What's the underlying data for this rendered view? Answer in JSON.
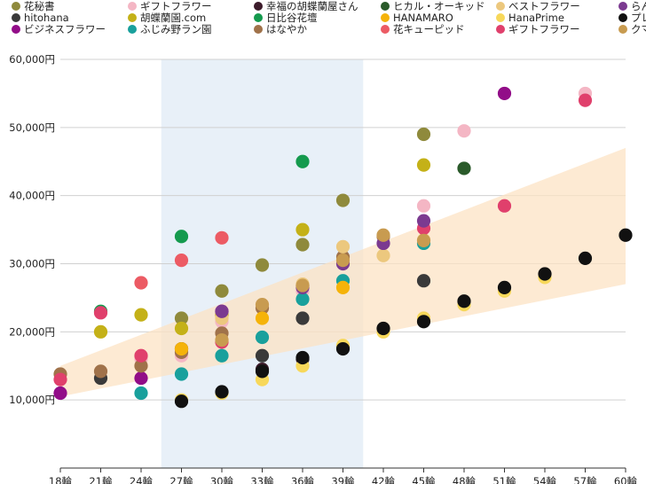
{
  "chart_data": {
    "type": "scatter",
    "title": "",
    "xlabel": "",
    "ylabel": "",
    "ylim": [
      0,
      60000
    ],
    "y_ticks": [
      10000,
      20000,
      30000,
      40000,
      50000,
      60000
    ],
    "y_tick_labels": [
      "10,000円",
      "20,000円",
      "30,000円",
      "40,000円",
      "50,000円",
      "60,000円"
    ],
    "categories": [
      "18輪",
      "21輪",
      "24輪",
      "27輪",
      "30輪",
      "33輪",
      "36輪",
      "39輪",
      "42輪",
      "45輪",
      "48輪",
      "51輪",
      "54輪",
      "57輪",
      "60輪"
    ],
    "x_values": [
      18,
      21,
      24,
      27,
      30,
      33,
      36,
      39,
      42,
      45,
      48,
      51,
      54,
      57,
      60
    ],
    "grid": "horizontal",
    "legend_position": "top",
    "highlight_region": {
      "x_from": 25.5,
      "x_to": 40.5,
      "color": "#e8f0f8"
    },
    "trend_band": {
      "x": [
        18,
        60
      ],
      "upper": [
        15000,
        47000
      ],
      "lower": [
        10500,
        27000
      ],
      "color": "#fce3c4"
    },
    "series": [
      {
        "name": "花秘書",
        "color": "#8f8a3c",
        "points": [
          [
            27,
            22000
          ],
          [
            30,
            26000
          ],
          [
            33,
            29800
          ],
          [
            36,
            32800
          ],
          [
            39,
            39300
          ],
          [
            45,
            49000
          ]
        ]
      },
      {
        "name": "hitohana",
        "color": "#3a3a3a",
        "points": [
          [
            21,
            13200
          ],
          [
            33,
            16500
          ],
          [
            36,
            22000
          ],
          [
            45,
            27500
          ]
        ]
      },
      {
        "name": "ビジネスフラワー",
        "color": "#920d88",
        "points": [
          [
            18,
            11000
          ],
          [
            24,
            13200
          ],
          [
            30,
            23000
          ],
          [
            51,
            55000
          ]
        ]
      },
      {
        "name": "ギフトフラワー",
        "color": "#f4b6c4",
        "points": [
          [
            24,
            16000
          ],
          [
            27,
            16500
          ],
          [
            30,
            21500
          ],
          [
            36,
            26000
          ],
          [
            45,
            38500
          ],
          [
            48,
            49500
          ],
          [
            57,
            55000
          ]
        ]
      },
      {
        "name": "胡蝶蘭園.com",
        "color": "#c4b118",
        "points": [
          [
            21,
            20000
          ],
          [
            24,
            22500
          ],
          [
            27,
            20500
          ],
          [
            30,
            22500
          ],
          [
            36,
            35000
          ],
          [
            45,
            44500
          ]
        ]
      },
      {
        "name": "ふじみ野ラン園",
        "color": "#19a09c",
        "points": [
          [
            24,
            11000
          ],
          [
            27,
            13800
          ],
          [
            30,
            16500
          ],
          [
            33,
            19200
          ],
          [
            36,
            24800
          ],
          [
            39,
            27500
          ],
          [
            45,
            33000
          ]
        ]
      },
      {
        "name": "幸福の胡蝶蘭屋さん",
        "color": "#3c1b2a",
        "points": [
          [
            27,
            17500
          ],
          [
            33,
            14500
          ],
          [
            36,
            16000
          ],
          [
            39,
            17800
          ]
        ]
      },
      {
        "name": "日比谷花壇",
        "color": "#159a4e",
        "points": [
          [
            21,
            23000
          ],
          [
            27,
            34000
          ],
          [
            36,
            45000
          ]
        ]
      },
      {
        "name": "はなやか",
        "color": "#a0724a",
        "points": [
          [
            18,
            13800
          ],
          [
            21,
            14200
          ],
          [
            24,
            15000
          ],
          [
            27,
            17000
          ],
          [
            30,
            19800
          ],
          [
            33,
            23500
          ],
          [
            36,
            26800
          ],
          [
            39,
            31000
          ],
          [
            42,
            34000
          ]
        ]
      },
      {
        "name": "ヒカル・オーキッド",
        "color": "#2a5a2a",
        "points": [
          [
            48,
            44000
          ]
        ]
      },
      {
        "name": "HANAMARO",
        "color": "#f5b30a",
        "points": [
          [
            27,
            17500
          ],
          [
            33,
            22000
          ],
          [
            39,
            26500
          ]
        ]
      },
      {
        "name": "花キューピッド",
        "color": "#ec5b64",
        "points": [
          [
            24,
            27200
          ],
          [
            27,
            30500
          ],
          [
            30,
            33800
          ]
        ]
      },
      {
        "name": "ベストフラワー",
        "color": "#ecc87e",
        "points": [
          [
            30,
            22000
          ],
          [
            36,
            27000
          ],
          [
            39,
            32500
          ],
          [
            42,
            31200
          ],
          [
            45,
            33500
          ]
        ]
      },
      {
        "name": "HanaPrime",
        "color": "#f7d85a",
        "points": [
          [
            27,
            10000
          ],
          [
            30,
            11000
          ],
          [
            33,
            13000
          ],
          [
            36,
            15000
          ],
          [
            39,
            18000
          ],
          [
            42,
            20000
          ],
          [
            45,
            22000
          ],
          [
            48,
            24000
          ],
          [
            51,
            26000
          ],
          [
            54,
            28000
          ]
        ]
      },
      {
        "name": "ギフトフラワー",
        "color": "#e0406c",
        "points": [
          [
            18,
            13000
          ],
          [
            21,
            22800
          ],
          [
            24,
            16500
          ],
          [
            30,
            18500
          ],
          [
            45,
            35200
          ],
          [
            51,
            38500
          ],
          [
            57,
            54000
          ]
        ]
      },
      {
        "name": "らんや",
        "color": "#7b3a90",
        "points": [
          [
            30,
            23000
          ],
          [
            36,
            26500
          ],
          [
            39,
            30000
          ],
          [
            42,
            33000
          ],
          [
            45,
            36300
          ]
        ]
      },
      {
        "name": "プレミアガーデン",
        "color": "#111111",
        "points": [
          [
            27,
            9800
          ],
          [
            30,
            11200
          ],
          [
            33,
            14200
          ],
          [
            36,
            16200
          ],
          [
            39,
            17500
          ],
          [
            42,
            20500
          ],
          [
            45,
            21500
          ],
          [
            48,
            24500
          ],
          [
            51,
            26500
          ],
          [
            54,
            28500
          ],
          [
            57,
            30800
          ],
          [
            60,
            34200
          ]
        ]
      },
      {
        "name": "クマサキ洋ラン農園",
        "color": "#c89b50",
        "points": [
          [
            30,
            18800
          ],
          [
            33,
            24000
          ],
          [
            36,
            26800
          ],
          [
            39,
            30500
          ],
          [
            42,
            34200
          ],
          [
            45,
            33400
          ]
        ]
      }
    ]
  }
}
